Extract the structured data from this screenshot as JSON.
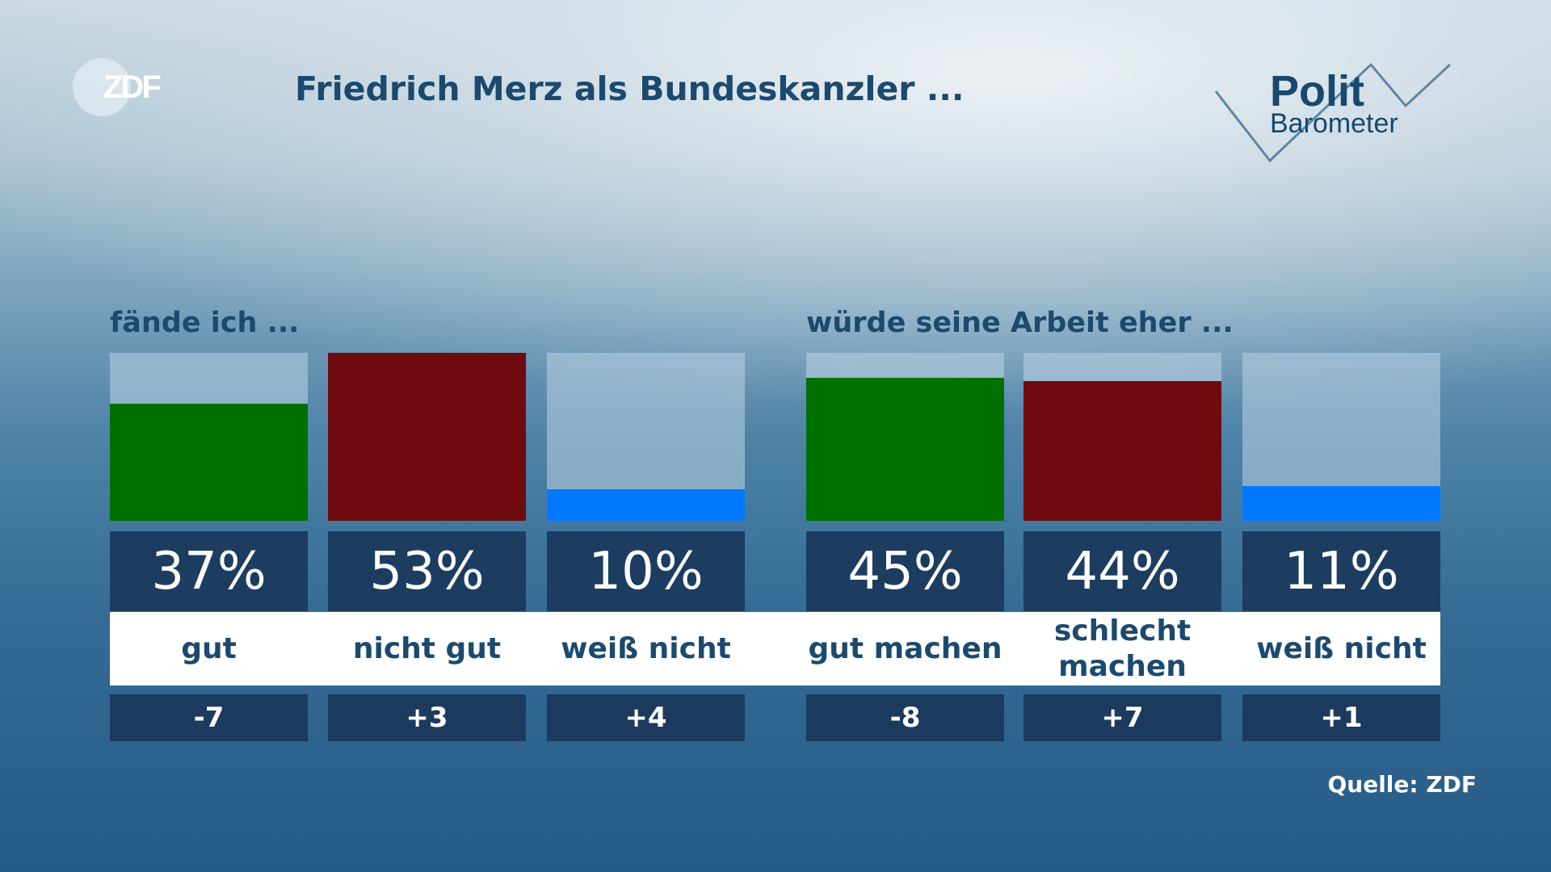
{
  "logo": {
    "brand": "ZDF"
  },
  "polit_logo": {
    "line1": "Polit",
    "line2": "Barometer"
  },
  "chart_data": {
    "type": "bar",
    "title": "Friedrich Merz als Bundeskanzler ...",
    "unit": "%",
    "ylim": [
      0,
      53
    ],
    "groups": [
      {
        "label": "fände ich ...",
        "categories": [
          "gut",
          "nicht gut",
          "weiß nicht"
        ],
        "values": [
          37,
          53,
          10
        ],
        "changes": [
          "-7",
          "+3",
          "+4"
        ],
        "value_labels": [
          "37%",
          "53%",
          "10%"
        ]
      },
      {
        "label": "würde seine Arbeit eher ...",
        "categories": [
          "gut machen",
          "schlecht machen",
          "weiß nicht"
        ],
        "values": [
          45,
          44,
          11
        ],
        "changes": [
          "-8",
          "+7",
          "+1"
        ],
        "value_labels": [
          "45%",
          "44%",
          "11%"
        ]
      }
    ],
    "colors": [
      "#007000",
      "#6e0b0e",
      "#0078ff"
    ],
    "source": "Quelle: ZDF"
  }
}
